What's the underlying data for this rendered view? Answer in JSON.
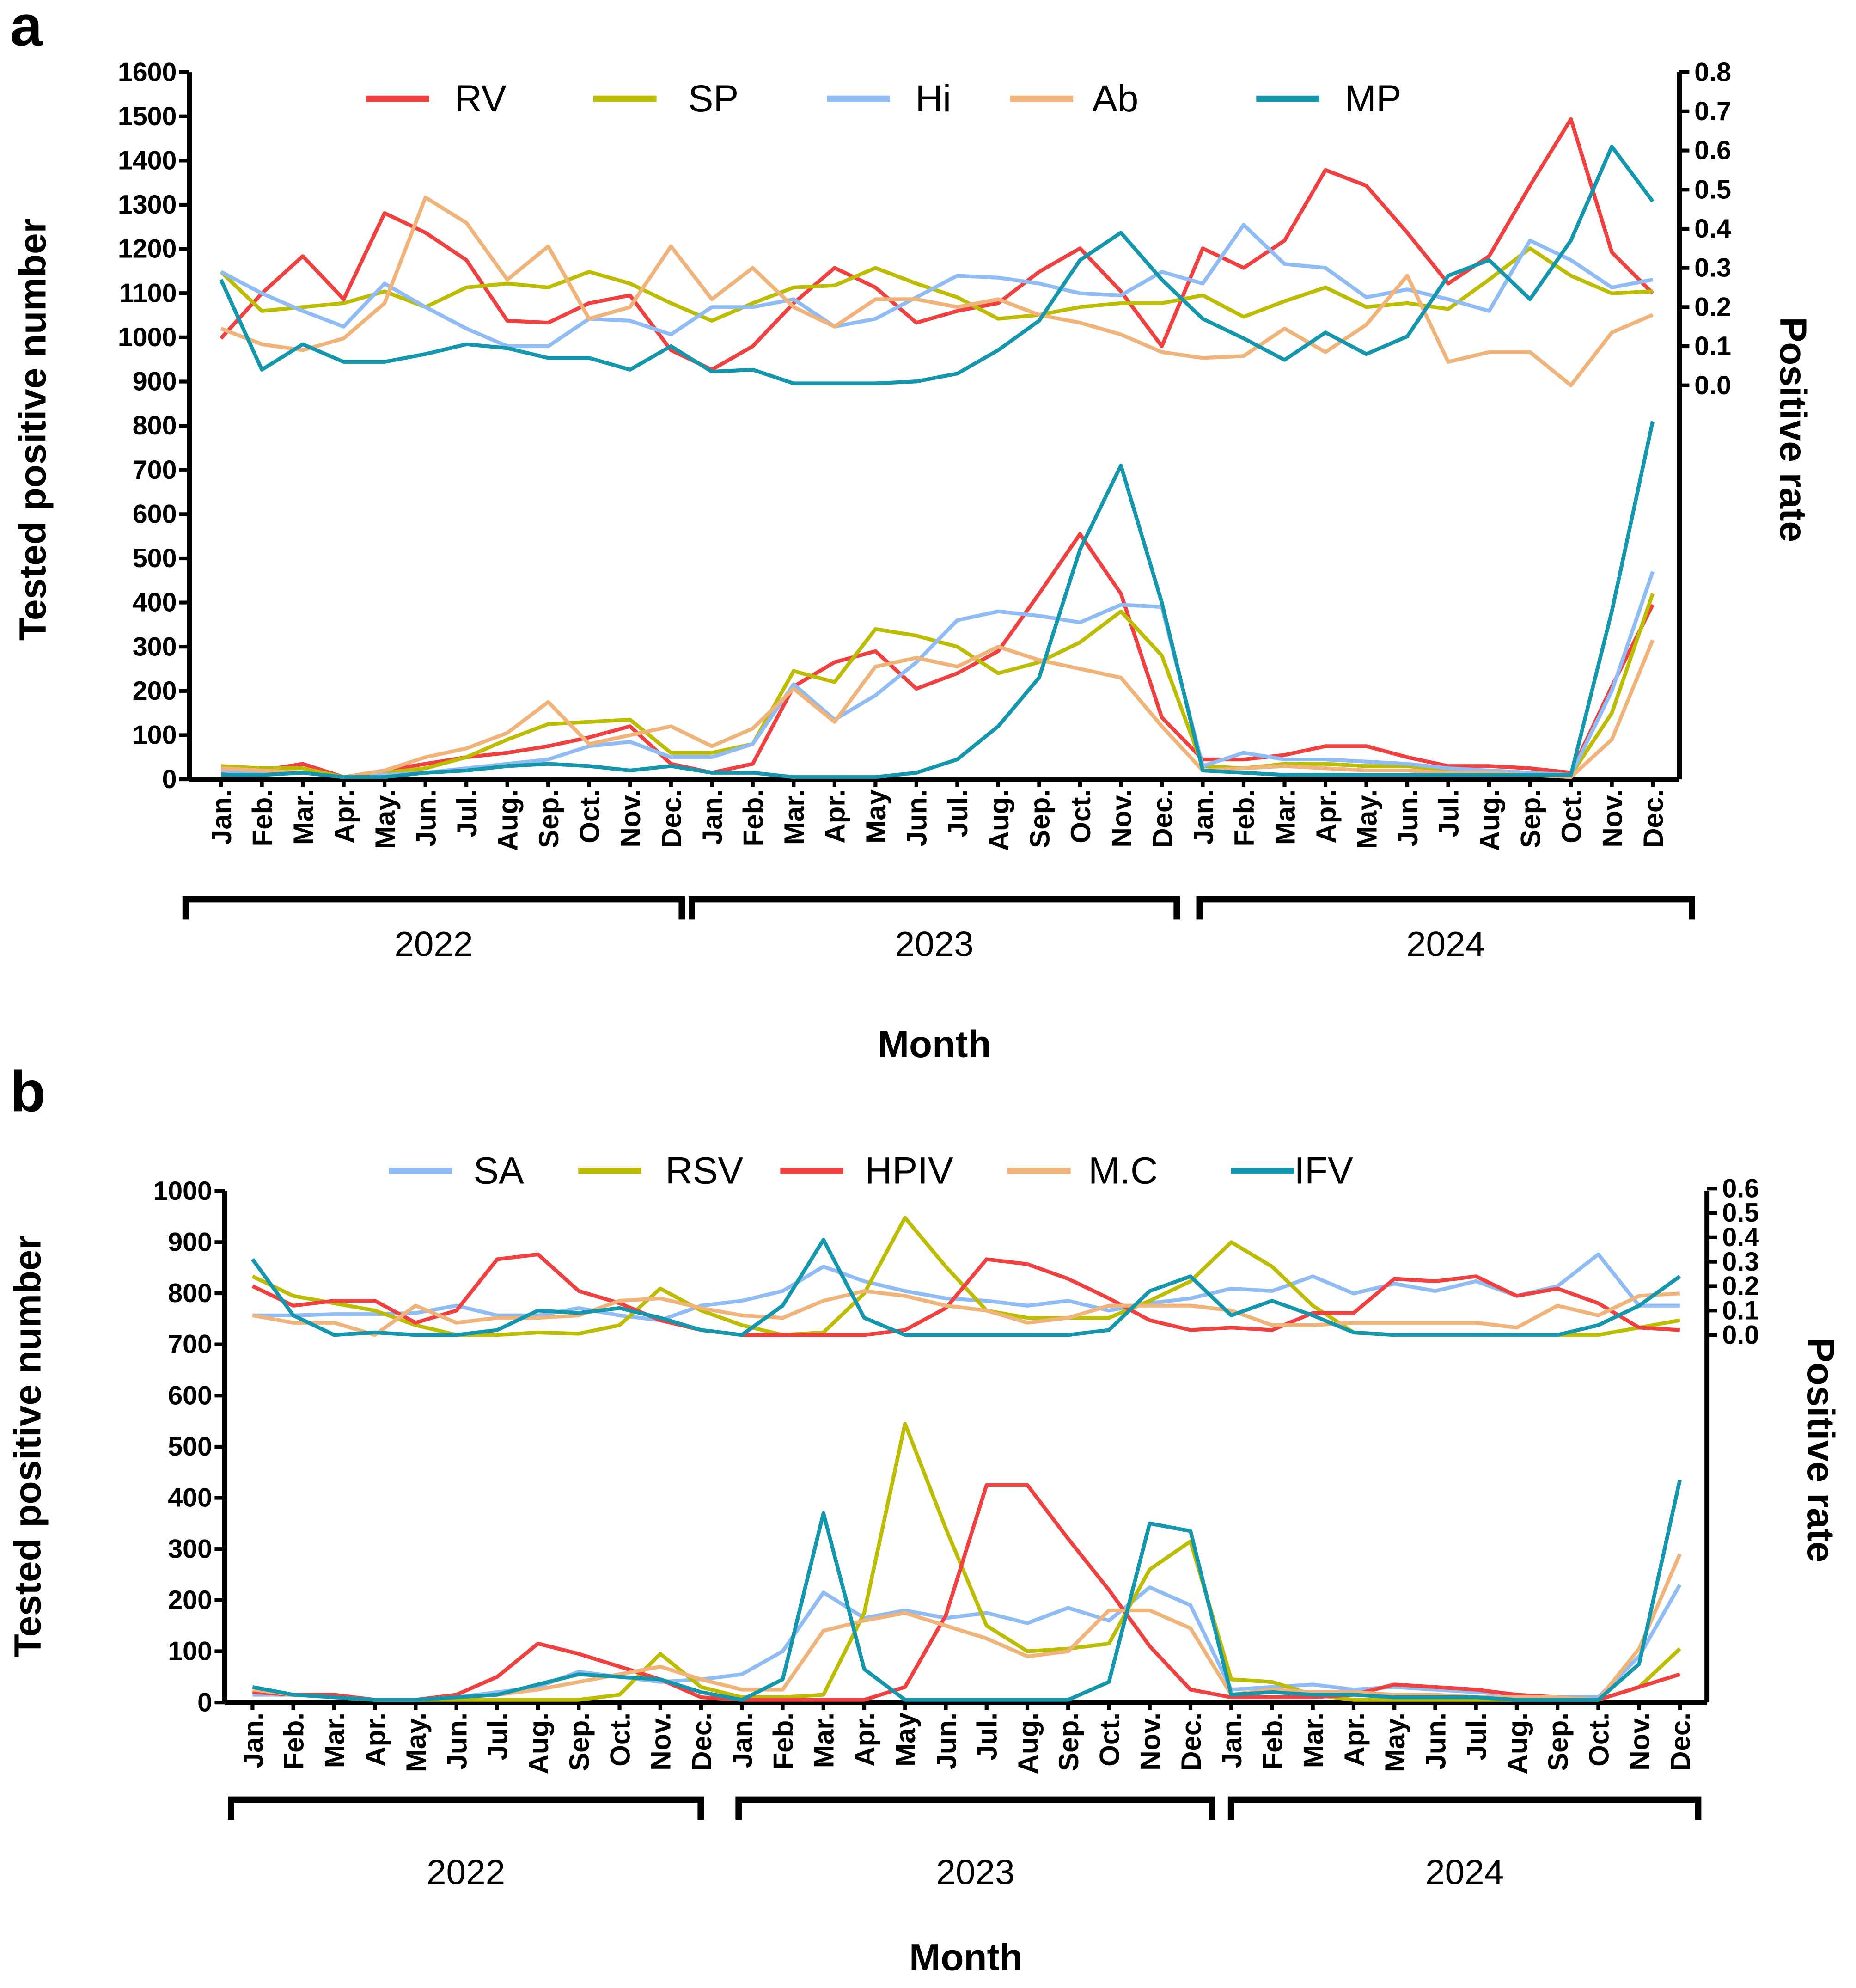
{
  "chart_data": [
    {
      "panel_label": "a",
      "type": "line",
      "xlabel": "Month",
      "ylabel": "Tested positive number",
      "y2label": "Positive rate",
      "ylim": [
        0,
        1600
      ],
      "y_ticks": [
        0,
        100,
        200,
        300,
        400,
        500,
        600,
        700,
        800,
        900,
        1000,
        1100,
        1200,
        1300,
        1400,
        1500,
        1600
      ],
      "y2lim": [
        0,
        0.8
      ],
      "y2_ticks": [
        "0.0",
        "0.1",
        "0.2",
        "0.3",
        "0.4",
        "0.5",
        "0.6",
        "0.7",
        "0.8"
      ],
      "months": [
        "Jan.",
        "Feb.",
        "Mar.",
        "Apr.",
        "May.",
        "Jun.",
        "Jul.",
        "Aug.",
        "Sep.",
        "Oct.",
        "Nov.",
        "Dec.",
        "Jan.",
        "Feb.",
        "Mar.",
        "Apr.",
        "May",
        "Jun.",
        "Jul.",
        "Aug.",
        "Sep.",
        "Oct.",
        "Nov.",
        "Dec.",
        "Jan.",
        "Feb.",
        "Mar.",
        "Apr.",
        "May.",
        "Jun.",
        "Jul.",
        "Aug.",
        "Sep.",
        "Oct.",
        "Nov.",
        "Dec."
      ],
      "years": [
        "2022",
        "2023",
        "2024"
      ],
      "legend": "top",
      "series": [
        {
          "name": "RV",
          "color": "#f04040",
          "counts": [
            15,
            20,
            35,
            5,
            20,
            35,
            50,
            60,
            75,
            95,
            120,
            35,
            15,
            35,
            210,
            265,
            290,
            205,
            240,
            290,
            420,
            555,
            420,
            140,
            45,
            45,
            55,
            75,
            75,
            50,
            30,
            30,
            25,
            15,
            210,
            395
          ],
          "rates": [
            0.12,
            0.235,
            0.33,
            0.22,
            0.44,
            0.39,
            0.32,
            0.165,
            0.16,
            0.21,
            0.23,
            0.09,
            0.04,
            0.1,
            0.21,
            0.3,
            0.25,
            0.16,
            0.19,
            0.21,
            0.29,
            0.35,
            0.24,
            0.1,
            0.35,
            0.3,
            0.37,
            0.55,
            0.51,
            0.39,
            0.26,
            0.33,
            0.51,
            0.68,
            0.34,
            0.235
          ]
        },
        {
          "name": "SP",
          "color": "#bcbc00",
          "counts": [
            30,
            25,
            25,
            5,
            15,
            25,
            50,
            90,
            125,
            130,
            135,
            60,
            60,
            80,
            245,
            220,
            340,
            325,
            300,
            240,
            265,
            310,
            380,
            280,
            30,
            25,
            35,
            35,
            30,
            30,
            20,
            20,
            15,
            10,
            150,
            420
          ],
          "rates": [
            0.29,
            0.19,
            0.2,
            0.21,
            0.24,
            0.2,
            0.25,
            0.26,
            0.25,
            0.29,
            0.26,
            0.21,
            0.165,
            0.21,
            0.25,
            0.255,
            0.3,
            0.26,
            0.225,
            0.17,
            0.18,
            0.2,
            0.21,
            0.21,
            0.23,
            0.175,
            0.215,
            0.25,
            0.2,
            0.21,
            0.195,
            0.27,
            0.35,
            0.28,
            0.235,
            0.24
          ]
        },
        {
          "name": "Hi",
          "color": "#8fbcf5",
          "counts": [
            20,
            15,
            15,
            5,
            10,
            15,
            25,
            35,
            45,
            75,
            85,
            50,
            50,
            80,
            215,
            135,
            190,
            265,
            360,
            380,
            370,
            355,
            395,
            390,
            30,
            60,
            45,
            45,
            40,
            35,
            25,
            20,
            15,
            10,
            200,
            470
          ],
          "rates": [
            0.29,
            0.235,
            0.19,
            0.15,
            0.26,
            0.2,
            0.145,
            0.1,
            0.1,
            0.17,
            0.165,
            0.13,
            0.2,
            0.2,
            0.22,
            0.15,
            0.17,
            0.225,
            0.28,
            0.275,
            0.26,
            0.235,
            0.23,
            0.29,
            0.26,
            0.41,
            0.31,
            0.3,
            0.225,
            0.245,
            0.22,
            0.19,
            0.37,
            0.32,
            0.25,
            0.27
          ]
        },
        {
          "name": "Ab",
          "color": "#f0b47a",
          "counts": [
            25,
            20,
            15,
            5,
            20,
            50,
            70,
            105,
            175,
            80,
            100,
            120,
            75,
            115,
            205,
            130,
            255,
            275,
            255,
            300,
            270,
            250,
            230,
            120,
            20,
            25,
            30,
            25,
            20,
            20,
            15,
            15,
            10,
            5,
            90,
            315
          ],
          "rates": [
            0.145,
            0.105,
            0.09,
            0.12,
            0.21,
            0.48,
            0.415,
            0.27,
            0.355,
            0.17,
            0.2,
            0.355,
            0.22,
            0.3,
            0.2,
            0.15,
            0.22,
            0.22,
            0.2,
            0.22,
            0.18,
            0.16,
            0.13,
            0.085,
            0.07,
            0.075,
            0.145,
            0.085,
            0.155,
            0.28,
            0.06,
            0.085,
            0.085,
            0.0,
            0.135,
            0.18
          ]
        },
        {
          "name": "MP",
          "color": "#1496ac",
          "counts": [
            10,
            10,
            15,
            5,
            5,
            15,
            20,
            30,
            35,
            30,
            20,
            30,
            15,
            15,
            5,
            5,
            5,
            15,
            45,
            120,
            230,
            520,
            710,
            400,
            20,
            15,
            10,
            10,
            10,
            10,
            10,
            10,
            10,
            10,
            380,
            810
          ],
          "rates": [
            0.27,
            0.04,
            0.105,
            0.06,
            0.06,
            0.08,
            0.105,
            0.095,
            0.07,
            0.07,
            0.04,
            0.1,
            0.035,
            0.04,
            0.005,
            0.005,
            0.005,
            0.01,
            0.03,
            0.09,
            0.165,
            0.32,
            0.39,
            0.27,
            0.17,
            0.12,
            0.065,
            0.135,
            0.08,
            0.125,
            0.28,
            0.32,
            0.22,
            0.37,
            0.61,
            0.47
          ]
        }
      ]
    },
    {
      "panel_label": "b",
      "type": "line",
      "xlabel": "Month",
      "ylabel": "Tested positive number",
      "y2label": "Positive rate",
      "ylim": [
        0,
        1000
      ],
      "y_ticks": [
        0,
        100,
        200,
        300,
        400,
        500,
        600,
        700,
        800,
        900,
        1000
      ],
      "y2lim": [
        0,
        0.6
      ],
      "y2_ticks": [
        "0.0",
        "0.1",
        "0.2",
        "0.3",
        "0.4",
        "0.5",
        "0.6"
      ],
      "months": [
        "Jan.",
        "Feb.",
        "Mar.",
        "Apr.",
        "May.",
        "Jun.",
        "Jul.",
        "Aug.",
        "Sep.",
        "Oct.",
        "Nov.",
        "Dec.",
        "Jan.",
        "Feb.",
        "Mar.",
        "Apr.",
        "May",
        "Jun.",
        "Jul.",
        "Aug.",
        "Sep.",
        "Oct.",
        "Nov.",
        "Dec.",
        "Jan.",
        "Feb.",
        "Mar.",
        "Apr.",
        "May.",
        "Jun.",
        "Jul.",
        "Aug.",
        "Sep.",
        "Oct.",
        "Nov.",
        "Dec."
      ],
      "years": [
        "2022",
        "2023",
        "2024"
      ],
      "legend": "top",
      "series": [
        {
          "name": "SA",
          "color": "#8fbcf5",
          "counts": [
            15,
            15,
            10,
            5,
            5,
            10,
            20,
            30,
            60,
            50,
            40,
            45,
            55,
            100,
            215,
            165,
            180,
            165,
            175,
            155,
            185,
            160,
            225,
            190,
            25,
            30,
            35,
            25,
            30,
            25,
            20,
            15,
            10,
            10,
            90,
            230
          ],
          "rates": [
            0.08,
            0.08,
            0.085,
            0.085,
            0.09,
            0.12,
            0.08,
            0.08,
            0.11,
            0.08,
            0.06,
            0.12,
            0.14,
            0.18,
            0.28,
            0.22,
            0.18,
            0.15,
            0.14,
            0.12,
            0.14,
            0.1,
            0.13,
            0.15,
            0.19,
            0.18,
            0.24,
            0.17,
            0.21,
            0.18,
            0.22,
            0.16,
            0.2,
            0.33,
            0.12,
            0.12
          ]
        },
        {
          "name": "RSV",
          "color": "#bcbc00",
          "counts": [
            20,
            15,
            10,
            5,
            5,
            5,
            5,
            5,
            5,
            15,
            95,
            30,
            10,
            10,
            15,
            175,
            545,
            340,
            150,
            100,
            105,
            115,
            260,
            315,
            45,
            40,
            15,
            5,
            5,
            5,
            5,
            5,
            5,
            5,
            30,
            105
          ],
          "rates": [
            0.24,
            0.16,
            0.13,
            0.1,
            0.04,
            0.0,
            0.0,
            0.01,
            0.005,
            0.04,
            0.19,
            0.1,
            0.04,
            0.0,
            0.01,
            0.17,
            0.48,
            0.28,
            0.1,
            0.07,
            0.07,
            0.07,
            0.14,
            0.22,
            0.38,
            0.28,
            0.12,
            0.01,
            0.0,
            0.0,
            0.0,
            0.0,
            0.0,
            0.0,
            0.03,
            0.06
          ]
        },
        {
          "name": "HPIV",
          "color": "#f04040",
          "counts": [
            20,
            15,
            15,
            5,
            5,
            15,
            50,
            115,
            95,
            70,
            45,
            10,
            5,
            5,
            5,
            5,
            30,
            170,
            425,
            425,
            320,
            220,
            110,
            25,
            10,
            10,
            10,
            15,
            35,
            30,
            25,
            15,
            10,
            5,
            30,
            55
          ],
          "rates": [
            0.2,
            0.12,
            0.14,
            0.14,
            0.05,
            0.1,
            0.31,
            0.33,
            0.18,
            0.13,
            0.06,
            0.02,
            0.0,
            0.0,
            0.0,
            0.0,
            0.02,
            0.11,
            0.31,
            0.29,
            0.23,
            0.15,
            0.06,
            0.02,
            0.03,
            0.02,
            0.09,
            0.09,
            0.23,
            0.22,
            0.24,
            0.16,
            0.19,
            0.13,
            0.03,
            0.02
          ]
        },
        {
          "name": "M.C",
          "color": "#f0b47a",
          "counts": [
            25,
            15,
            10,
            5,
            5,
            10,
            15,
            25,
            40,
            55,
            70,
            45,
            25,
            25,
            140,
            160,
            175,
            150,
            125,
            90,
            100,
            180,
            180,
            145,
            15,
            25,
            20,
            20,
            15,
            15,
            10,
            10,
            10,
            5,
            105,
            290
          ],
          "rates": [
            0.08,
            0.05,
            0.05,
            0.0,
            0.12,
            0.05,
            0.07,
            0.07,
            0.08,
            0.14,
            0.15,
            0.11,
            0.08,
            0.07,
            0.14,
            0.18,
            0.16,
            0.12,
            0.1,
            0.05,
            0.07,
            0.12,
            0.12,
            0.12,
            0.1,
            0.04,
            0.04,
            0.05,
            0.05,
            0.05,
            0.05,
            0.03,
            0.12,
            0.08,
            0.16,
            0.17
          ]
        },
        {
          "name": "IFV",
          "color": "#1496ac",
          "counts": [
            30,
            15,
            10,
            5,
            5,
            10,
            15,
            35,
            55,
            50,
            45,
            20,
            5,
            45,
            370,
            65,
            5,
            5,
            5,
            5,
            5,
            40,
            350,
            335,
            15,
            20,
            15,
            15,
            10,
            10,
            10,
            5,
            5,
            5,
            75,
            435
          ],
          "rates": [
            0.31,
            0.08,
            0.0,
            0.01,
            0.0,
            0.0,
            0.02,
            0.1,
            0.09,
            0.11,
            0.07,
            0.02,
            0.0,
            0.12,
            0.39,
            0.07,
            0.0,
            0.0,
            0.0,
            0.0,
            0.0,
            0.02,
            0.18,
            0.24,
            0.08,
            0.14,
            0.08,
            0.01,
            0.0,
            0.0,
            0.0,
            0.0,
            0.0,
            0.04,
            0.12,
            0.24
          ]
        }
      ]
    }
  ]
}
